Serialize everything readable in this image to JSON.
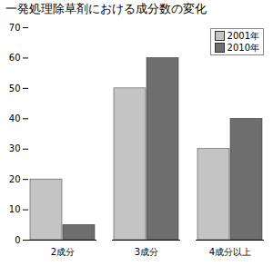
{
  "chart_data": {
    "type": "bar",
    "title": "一発処理除草剤における成分数の変化",
    "categories": [
      "2成分",
      "3成分",
      "4成分以上"
    ],
    "series": [
      {
        "name": "2001年",
        "color": "#c4c4c4",
        "values": [
          20,
          50,
          30
        ]
      },
      {
        "name": "2010年",
        "color": "#6e6e6e",
        "values": [
          5,
          60,
          40
        ]
      }
    ],
    "ylim": [
      0,
      70
    ],
    "yticks": [
      0,
      10,
      20,
      30,
      40,
      50,
      60,
      70
    ],
    "grid": false,
    "legend": "upper right"
  }
}
